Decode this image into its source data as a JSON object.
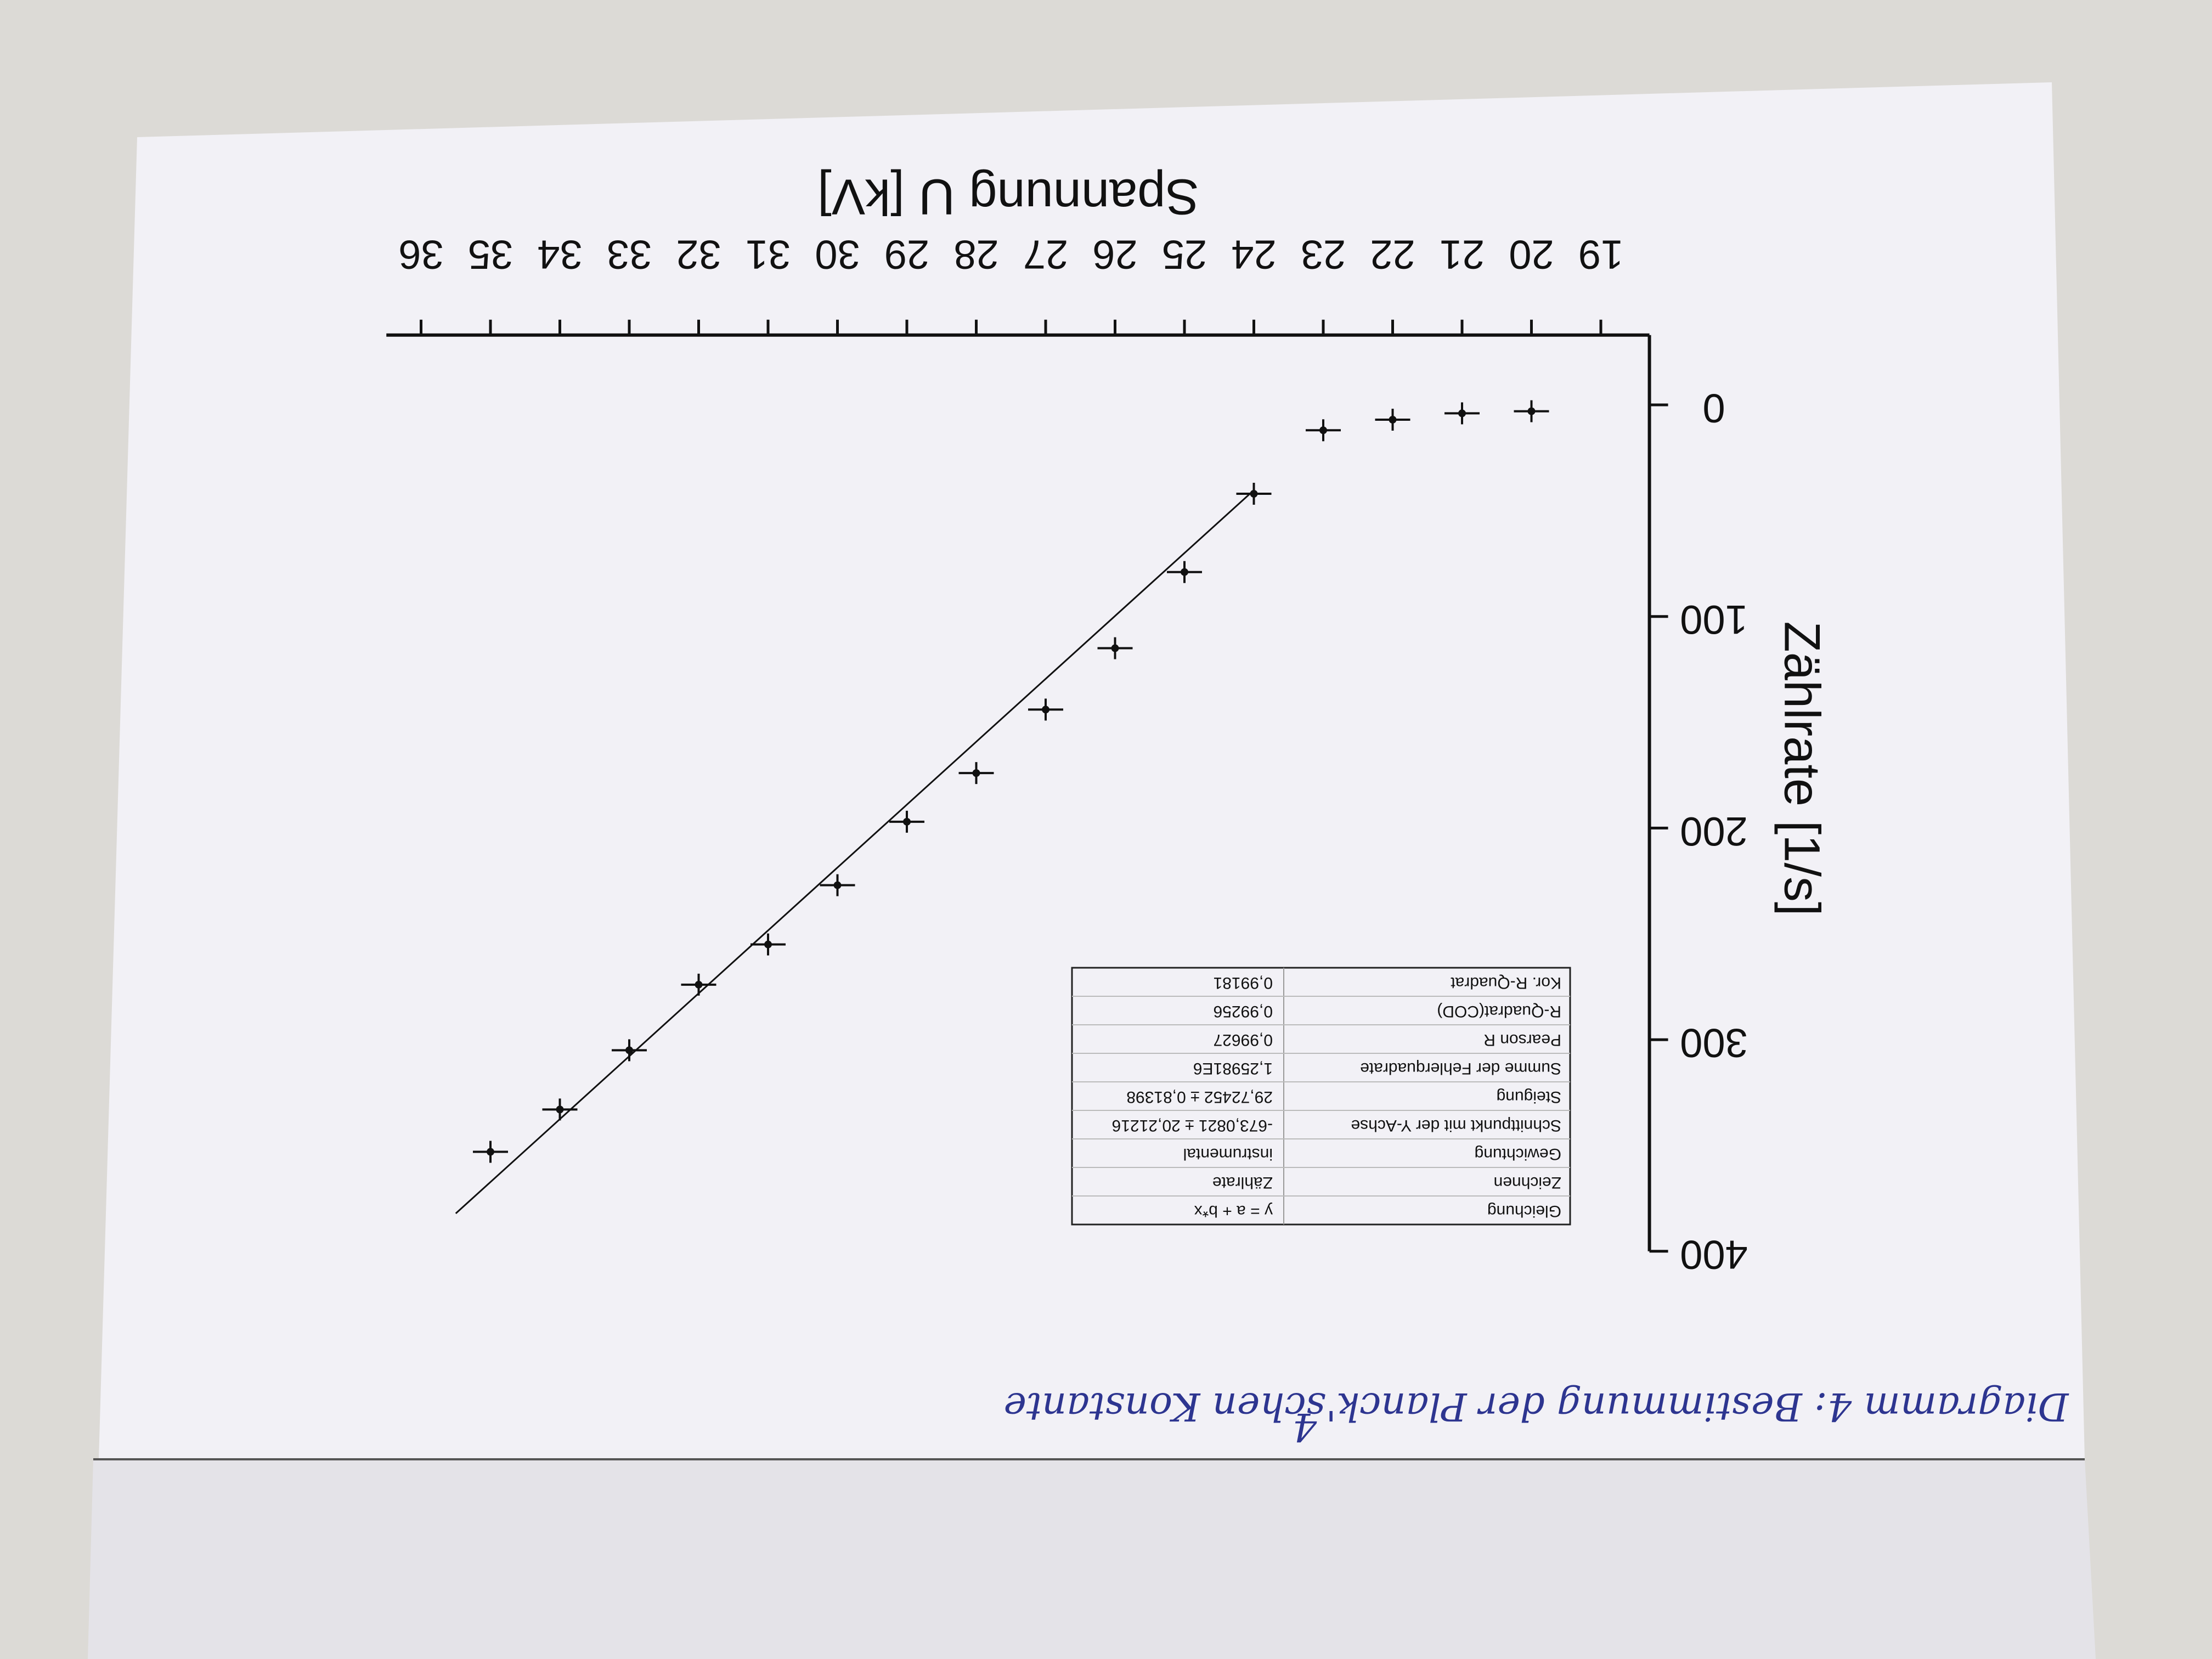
{
  "chart_data": {
    "type": "scatter",
    "x_label": "Spannung U [kV]",
    "y_label": "Zählrate [1/s]",
    "x": [
      20,
      21,
      22,
      23,
      24,
      25,
      26,
      27,
      28,
      29,
      30,
      31,
      32,
      33,
      34,
      35
    ],
    "values": [
      3,
      4,
      7,
      12,
      42,
      79,
      115,
      144,
      174,
      197,
      227,
      255,
      274,
      305,
      333,
      353
    ],
    "color": "#111111",
    "xlim": [
      18.3,
      36.5
    ],
    "ylim": [
      -33,
      400
    ],
    "xticks": [
      19,
      20,
      21,
      22,
      23,
      24,
      25,
      26,
      27,
      28,
      29,
      30,
      31,
      32,
      33,
      34,
      35,
      36
    ],
    "yticks": [
      0,
      100,
      200,
      300,
      400
    ],
    "fit": {
      "intercept": -673.0821,
      "slope": 29.72452,
      "x_range": [
        24,
        35.5
      ]
    },
    "fit_table": {
      "rows": [
        [
          "Gleichung",
          "y = a + b*x"
        ],
        [
          "Zeichnen",
          "Zählrate"
        ],
        [
          "Gewichtung",
          "instrumental"
        ],
        [
          "Schnittpunkt mit der Y-Achse",
          "-673,0821 ± 20,21216"
        ],
        [
          "Steigung",
          "29,72452 ± 0,81398"
        ],
        [
          "Summe der Fehlerquadrate",
          "1,25981E6"
        ],
        [
          "Pearson R",
          "0,99627"
        ],
        [
          "R-Quadrat(COD)",
          "0,99256"
        ],
        [
          "Kor. R-Quadrat",
          "0,99181"
        ]
      ]
    },
    "caption": "Diagramm 4: Bestimmung der Planck'schen Konstante",
    "page_number": "4"
  }
}
